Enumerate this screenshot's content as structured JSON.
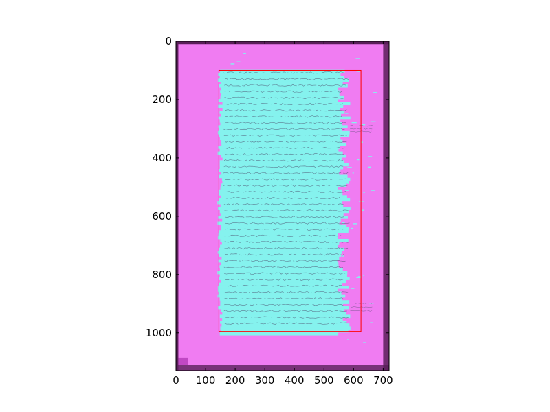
{
  "chart_data": {
    "type": "image",
    "title": "",
    "xlabel": "",
    "ylabel": "",
    "xlim": [
      0,
      720
    ],
    "ylim": [
      1130,
      0
    ],
    "x_ticks": [
      0,
      100,
      200,
      300,
      400,
      500,
      600,
      700
    ],
    "y_ticks": [
      0,
      200,
      400,
      600,
      800,
      1000
    ],
    "x_tick_labels": [
      "0",
      "100",
      "200",
      "300",
      "400",
      "500",
      "600",
      "700"
    ],
    "y_tick_labels": [
      "0",
      "200",
      "400",
      "600",
      "800",
      "1000"
    ],
    "annotations": [
      {
        "type": "rectangle",
        "x": [
          145,
          625
        ],
        "y": [
          100,
          995
        ],
        "color": "#ff0000"
      }
    ],
    "colors": {
      "background": "#f07cf2",
      "highlight": "#85f2ee",
      "page_edge": "#5a1f5a",
      "text_ink": "#4b4b6b",
      "box": "#ff0000"
    }
  }
}
